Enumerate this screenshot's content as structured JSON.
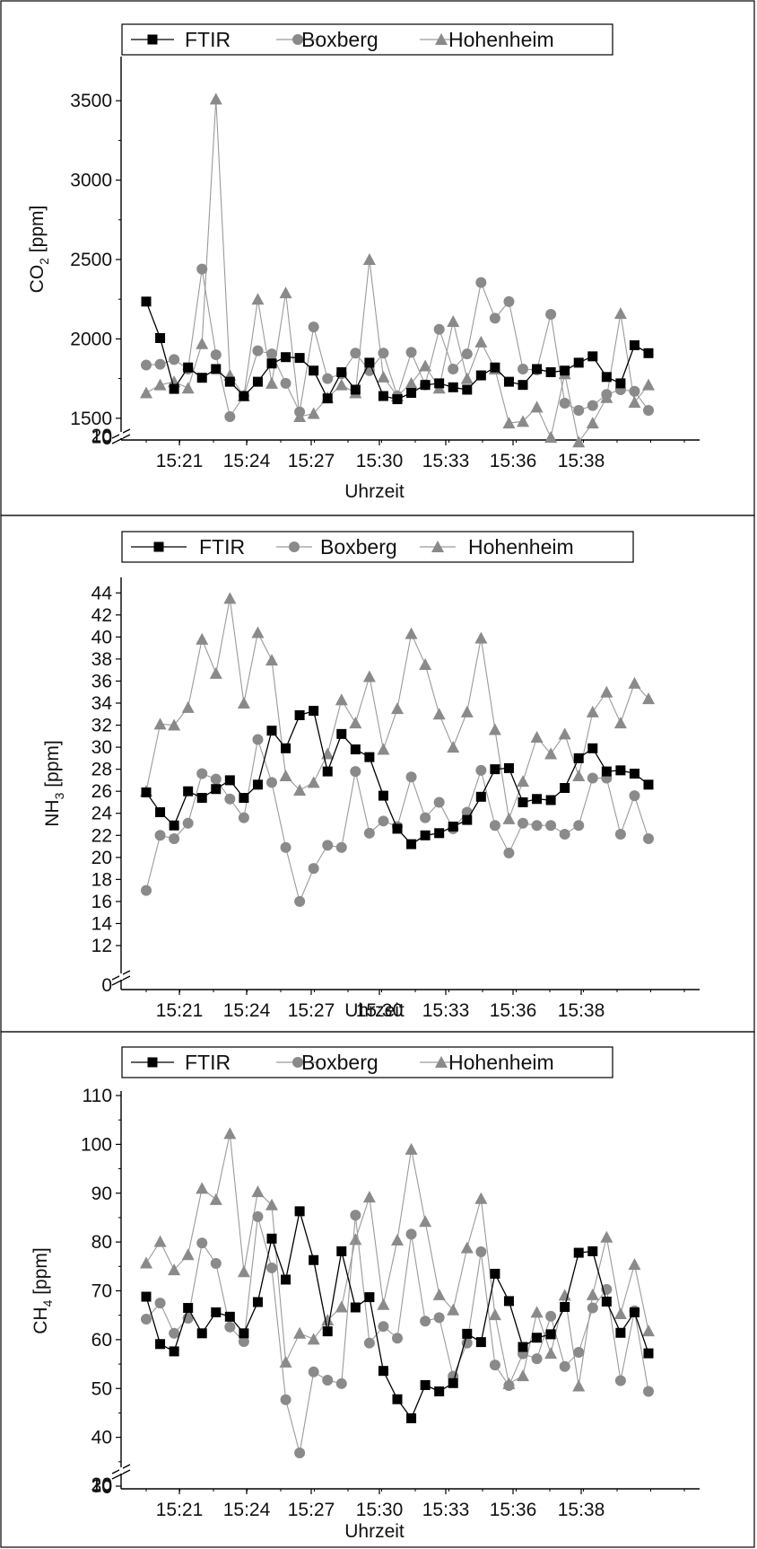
{
  "chart_data": [
    {
      "type": "line",
      "xlabel": "Uhrzeit",
      "ylabel_main": "CO",
      "ylabel_sub": "2",
      "ylabel_unit": " [ppm]",
      "x_ticks": [
        "15:21",
        "15:24",
        "15:27",
        "15:30",
        "15:33",
        "15:36",
        "15:38"
      ],
      "xlim": [
        0,
        32
      ],
      "ylim": [
        1380,
        3750
      ],
      "y_ticks": [
        1500,
        2000,
        2500,
        3000,
        3500
      ],
      "y_ticks_below_break": [
        "0",
        "10",
        "20"
      ],
      "legend": [
        "FTIR",
        "Boxberg",
        "Hohenheim"
      ],
      "series": [
        {
          "name": "FTIR",
          "marker": "square",
          "color": "#000000",
          "values": [
            2235,
            2005,
            1685,
            1820,
            1755,
            1810,
            1730,
            1640,
            1730,
            1845,
            1885,
            1880,
            1800,
            1625,
            1790,
            1680,
            1850,
            1640,
            1620,
            1660,
            1710,
            1720,
            1695,
            1680,
            1770,
            1820,
            1730,
            1710,
            1810,
            1790,
            1800,
            1850,
            1890,
            1760,
            1720,
            1960,
            1910
          ]
        },
        {
          "name": "Boxberg",
          "marker": "circle",
          "color": "#8a8a8a",
          "values": [
            1835,
            1840,
            1870,
            1810,
            2440,
            1900,
            1510,
            1640,
            1925,
            1905,
            1720,
            1540,
            2075,
            1750,
            1780,
            1910,
            1800,
            1910,
            1640,
            1915,
            1710,
            2060,
            1810,
            1905,
            2355,
            2130,
            2235,
            1810,
            1805,
            2155,
            1595,
            1550,
            1580,
            1650,
            1680,
            1670,
            1550
          ]
        },
        {
          "name": "Hohenheim",
          "marker": "triangle",
          "color": "#8a8a8a",
          "values": [
            1660,
            1710,
            1730,
            1690,
            1970,
            3510,
            1770,
            1640,
            2250,
            1720,
            2290,
            1510,
            1530,
            1630,
            1710,
            1660,
            2500,
            1760,
            1640,
            1720,
            1830,
            1690,
            2110,
            1750,
            1980,
            1810,
            1470,
            1480,
            1570,
            1380,
            1780,
            1350,
            1470,
            1630,
            2160,
            1600,
            1710
          ]
        }
      ]
    },
    {
      "type": "line",
      "xlabel": "Uhrzeit",
      "ylabel_main": "NH",
      "ylabel_sub": "3",
      "ylabel_unit": " [ppm]",
      "x_ticks": [
        "15:21",
        "15:24",
        "15:27",
        "15:30",
        "15:33",
        "15:36",
        "15:38"
      ],
      "xlim": [
        0,
        32
      ],
      "ylim": [
        12,
        45
      ],
      "y_ticks": [
        12,
        14,
        16,
        18,
        20,
        22,
        24,
        26,
        28,
        30,
        32,
        34,
        36,
        38,
        40,
        42,
        44
      ],
      "y_ticks_below_break": [
        "0"
      ],
      "legend": [
        "FTIR",
        "Boxberg",
        "Hohenheim"
      ],
      "series": [
        {
          "name": "FTIR",
          "marker": "square",
          "color": "#000000",
          "values": [
            25.9,
            24.1,
            22.9,
            26.0,
            25.4,
            26.2,
            27.0,
            25.4,
            26.6,
            31.5,
            29.9,
            32.9,
            33.3,
            27.8,
            31.2,
            29.8,
            29.1,
            25.6,
            22.6,
            21.2,
            22.0,
            22.2,
            22.8,
            23.4,
            25.5,
            28.0,
            28.1,
            25.0,
            25.3,
            25.2,
            26.3,
            29.0,
            29.9,
            27.8,
            27.9,
            27.6,
            26.6
          ]
        },
        {
          "name": "Boxberg",
          "marker": "circle",
          "color": "#8a8a8a",
          "values": [
            17.0,
            22.0,
            21.7,
            23.1,
            27.6,
            27.1,
            25.3,
            23.6,
            30.7,
            26.8,
            20.9,
            16.0,
            19.0,
            21.1,
            20.9,
            27.8,
            22.2,
            23.3,
            22.8,
            27.3,
            23.6,
            25.0,
            22.6,
            24.1,
            27.9,
            22.9,
            20.4,
            23.1,
            22.9,
            22.9,
            22.1,
            22.9,
            27.2,
            27.2,
            22.1,
            25.6,
            21.7
          ]
        },
        {
          "name": "Hohenheim",
          "marker": "triangle",
          "color": "#8a8a8a",
          "values": [
            26.0,
            32.1,
            32.0,
            33.6,
            39.8,
            36.7,
            43.5,
            34.0,
            40.4,
            37.9,
            27.4,
            26.1,
            26.8,
            29.4,
            34.3,
            32.2,
            36.4,
            29.8,
            33.5,
            40.3,
            37.5,
            33.0,
            30.0,
            33.2,
            39.9,
            31.6,
            23.5,
            26.9,
            30.9,
            29.4,
            31.2,
            27.4,
            33.2,
            35.0,
            32.2,
            35.8,
            34.4
          ]
        }
      ]
    },
    {
      "type": "line",
      "xlabel": "Uhrzeit",
      "ylabel_main": "CH",
      "ylabel_sub": "4",
      "ylabel_unit": " [ppm]",
      "x_ticks": [
        "15:21",
        "15:24",
        "15:27",
        "15:30",
        "15:33",
        "15:36",
        "15:38"
      ],
      "xlim": [
        0,
        32
      ],
      "ylim": [
        30,
        110
      ],
      "y_ticks": [
        30,
        40,
        50,
        60,
        70,
        80,
        90,
        100,
        110
      ],
      "y_ticks_below_break": [
        "0",
        "10",
        "20"
      ],
      "legend": [
        "FTIR",
        "Boxberg",
        "Hohenheim"
      ],
      "series": [
        {
          "name": "FTIR",
          "marker": "square",
          "color": "#000000",
          "values": [
            68.8,
            59.1,
            57.6,
            66.5,
            61.3,
            65.6,
            64.7,
            61.3,
            67.7,
            80.7,
            72.3,
            86.3,
            76.3,
            61.7,
            78.1,
            66.6,
            68.7,
            53.6,
            47.8,
            43.9,
            50.7,
            49.4,
            51.1,
            61.2,
            59.5,
            73.5,
            67.9,
            58.5,
            60.4,
            61.1,
            66.7,
            77.8,
            78.1,
            67.8,
            61.4,
            65.6,
            57.2
          ]
        },
        {
          "name": "Boxberg",
          "marker": "circle",
          "color": "#8a8a8a",
          "values": [
            64.2,
            67.5,
            61.3,
            64.4,
            79.8,
            75.6,
            62.6,
            59.6,
            85.2,
            74.7,
            47.7,
            36.8,
            53.4,
            51.7,
            51.0,
            85.5,
            59.3,
            62.7,
            60.3,
            81.6,
            63.8,
            64.5,
            52.5,
            59.3,
            78.0,
            54.8,
            50.6,
            57.1,
            56.1,
            64.8,
            54.5,
            57.4,
            66.5,
            70.3,
            51.6,
            65.9,
            49.4
          ]
        },
        {
          "name": "Hohenheim",
          "marker": "triangle",
          "color": "#8a8a8a",
          "values": [
            75.7,
            80.1,
            74.3,
            77.4,
            91.0,
            88.7,
            102.2,
            73.9,
            90.3,
            87.6,
            55.4,
            61.3,
            60.1,
            64.0,
            66.7,
            80.5,
            89.2,
            67.2,
            80.4,
            99.0,
            84.2,
            69.2,
            66.1,
            78.8,
            88.9,
            65.1,
            51.0,
            52.6,
            65.6,
            57.2,
            69.1,
            50.5,
            69.2,
            81.0,
            65.3,
            75.4,
            61.8
          ]
        }
      ]
    }
  ]
}
